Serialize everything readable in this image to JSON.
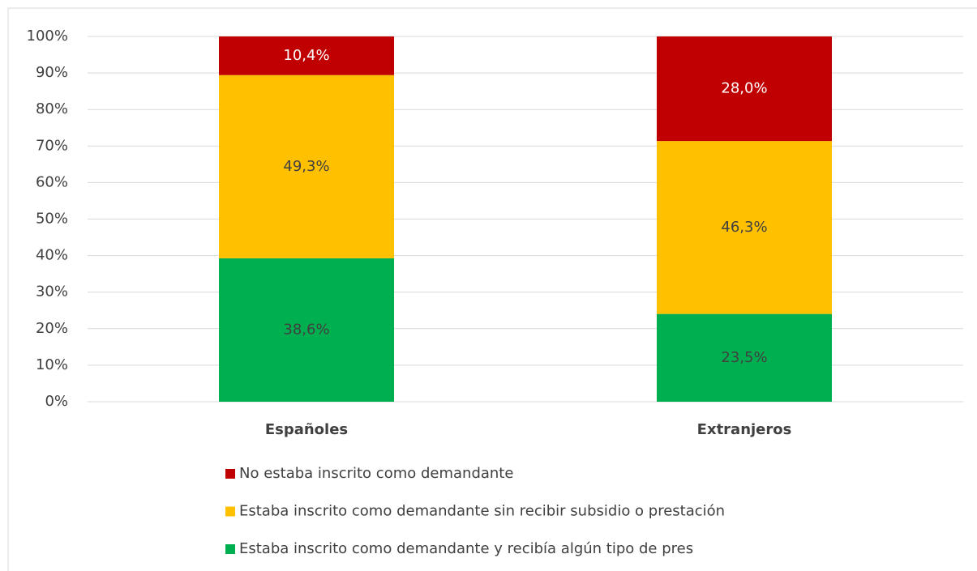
{
  "chart_data": {
    "type": "bar",
    "stacking": "percent",
    "categories": [
      "Españoles",
      "Extranjeros"
    ],
    "series": [
      {
        "name": "No estaba inscrito como demandante",
        "color": "#c00000",
        "label_color": "#ffffff",
        "values": [
          10.4,
          28.0
        ],
        "value_labels": [
          "10,4%",
          "28,0%"
        ]
      },
      {
        "name": "Estaba inscrito como demandante sin recibir subsidio o prestación",
        "color": "#ffc000",
        "label_color": "#404040",
        "values": [
          49.3,
          46.3
        ],
        "value_labels": [
          "49,3%",
          "46,3%"
        ]
      },
      {
        "name": "Estaba inscrito como demandante y recibía algún tipo de pres",
        "color": "#00b050",
        "label_color": "#404040",
        "values": [
          38.6,
          23.5
        ],
        "value_labels": [
          "38,6%",
          "23,5%"
        ]
      }
    ],
    "ylim": [
      0,
      100
    ],
    "yticks": [
      {
        "value": 0,
        "label": "0%"
      },
      {
        "value": 10,
        "label": "10%"
      },
      {
        "value": 20,
        "label": "20%"
      },
      {
        "value": 30,
        "label": "30%"
      },
      {
        "value": 40,
        "label": "40%"
      },
      {
        "value": 50,
        "label": "50%"
      },
      {
        "value": 60,
        "label": "60%"
      },
      {
        "value": 70,
        "label": "70%"
      },
      {
        "value": 80,
        "label": "80%"
      },
      {
        "value": 90,
        "label": "90%"
      },
      {
        "value": 100,
        "label": "100%"
      }
    ],
    "grid": true
  }
}
